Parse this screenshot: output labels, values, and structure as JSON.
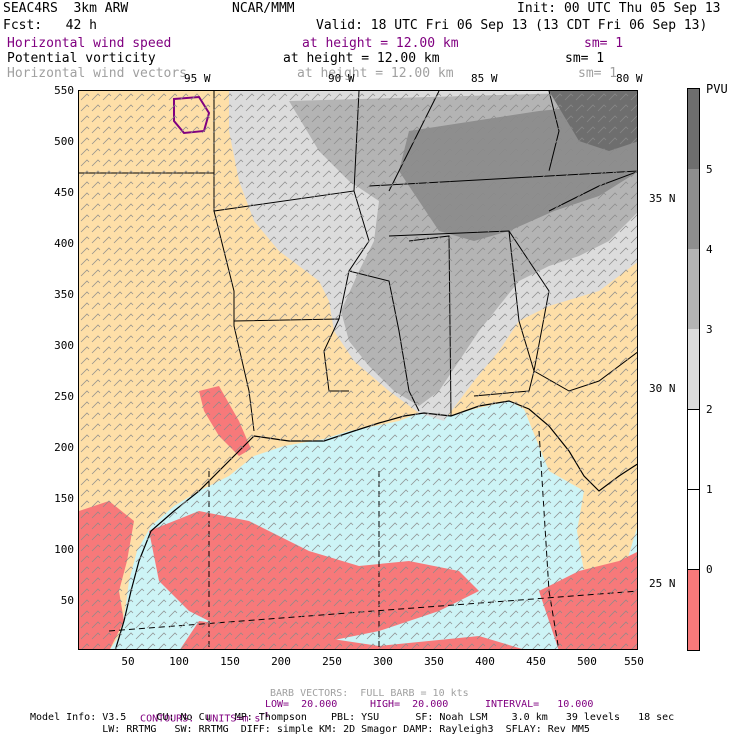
{
  "header": {
    "line1_left": "SEAC4RS  3km ARW",
    "line1_center": "NCAR/MMM",
    "line1_right": "Init: 00 UTC Thu 05 Sep 13",
    "line2_left": "Fcst:   42 h",
    "line2_right": "Valid: 18 UTC Fri 06 Sep 13 (13 CDT Fri 06 Sep 13)"
  },
  "fields": [
    {
      "name": "Horizontal wind speed",
      "height": "at height = 12.00 km",
      "sm": "sm= 1",
      "color": "#800080"
    },
    {
      "name": "Potential vorticity",
      "height": "at height = 12.00 km",
      "sm": "sm= 1",
      "color": "#000000"
    },
    {
      "name": "Horizontal wind vectors",
      "height": "at height = 12.00 km",
      "sm": "sm= 1",
      "color": "#a0a0a0"
    }
  ],
  "map": {
    "y_ticks": [
      "550",
      "500",
      "450",
      "400",
      "350",
      "300",
      "250",
      "200",
      "150",
      "100",
      "50"
    ],
    "x_ticks": [
      "50",
      "100",
      "150",
      "200",
      "250",
      "300",
      "350",
      "400",
      "450",
      "500",
      "550"
    ],
    "lon_labels": [
      "95 W",
      "90 W",
      "85 W",
      "80 W"
    ],
    "lat_labels": [
      "35 N",
      "30 N",
      "25 N"
    ],
    "colors": {
      "land": "#fedfa8",
      "ocean": "#cdf4f6",
      "pv_low": "#f7797a",
      "pv_lo_gray": "#dcdcdc",
      "pv_mid_gray": "#b4b4b4",
      "pv_high_gray": "#8e8e8e",
      "pv_top_gray": "#6e6e6e",
      "wind_contour": "#800080"
    }
  },
  "colorbar": {
    "units": "PVU",
    "labels": [
      "5",
      "4",
      "3",
      "2",
      "1",
      "0"
    ],
    "colors": [
      "#6e6e6e",
      "#8e8e8e",
      "#b4b4b4",
      "#dcdcdc",
      "#ffffff",
      "#ffffff",
      "#f7797a"
    ]
  },
  "footer": {
    "barb_info": "BARB VECTORS:  FULL BARB = 10 kts",
    "contours_label": "CONTOURS:  UNITS=m s",
    "contours_sup": "-1",
    "low": "LOW=  20.000",
    "high": "HIGH=  20.000",
    "interval": "INTERVAL=   10.000",
    "model_line1": "Model Info: V3.5     CU: No Cu    MP: Thompson    PBL: YSU      SF: Noah LSM    3.0 km   39 levels   18 sec",
    "model_line2": "            LW: RRTMG   SW: RRTMG  DIFF: simple KM: 2D Smagor DAMP: Rayleigh3  SFLAY: Rev MM5"
  }
}
